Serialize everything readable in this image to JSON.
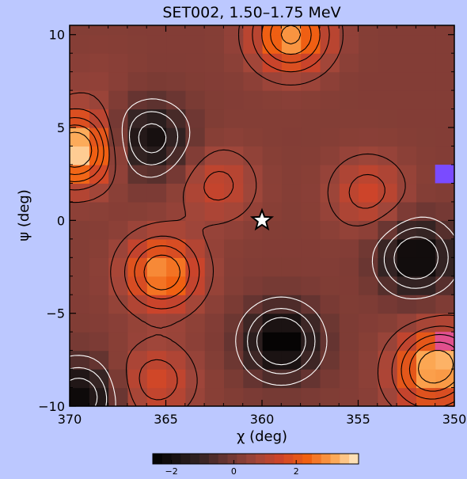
{
  "chart_data": {
    "type": "heatmap",
    "title": "SET002, 1.50–1.75 MeV",
    "xlabel": "χ (deg)",
    "ylabel": "ψ (deg)",
    "xlim": [
      370,
      350
    ],
    "ylim": [
      -10,
      10.5
    ],
    "x_ticks": [
      370,
      365,
      360,
      355,
      350
    ],
    "y_ticks": [
      -10,
      -5,
      0,
      5,
      10
    ],
    "colorbar": {
      "range": [
        -2.6,
        4.0
      ],
      "ticks": [
        -2,
        0,
        2
      ]
    },
    "grid_cell_deg": 1.0,
    "star_marker": {
      "x": 360,
      "y": 0
    },
    "hotspots": [
      {
        "x": 358.5,
        "y": 10.0,
        "value": 3.2
      },
      {
        "x": 369.7,
        "y": 3.8,
        "value": 3.8
      },
      {
        "x": 365.2,
        "y": -2.8,
        "value": 3.0
      },
      {
        "x": 362.3,
        "y": 1.9,
        "value": 1.4
      },
      {
        "x": 365.8,
        "y": 4.4,
        "value": -2.0
      },
      {
        "x": 354.5,
        "y": 1.5,
        "value": 1.5
      },
      {
        "x": 351.5,
        "y": -8.3,
        "value": 2.0
      },
      {
        "x": 365.5,
        "y": -8.6,
        "value": 1.6
      },
      {
        "x": 359.0,
        "y": -6.5,
        "value": -2.6
      },
      {
        "x": 352.0,
        "y": -2.0,
        "value": -2.4
      },
      {
        "x": 350.5,
        "y": -7.5,
        "value": 2.2
      },
      {
        "x": 369.5,
        "y": -9.5,
        "value": -2.2
      },
      {
        "x": 368.5,
        "y": 7.5,
        "value": 0.4
      }
    ],
    "background_value": 0.2,
    "special_cells": [
      {
        "x": 350.5,
        "y": 2.5,
        "color": "#7a4bff"
      },
      {
        "x": 350.5,
        "y": -6.5,
        "color": "#e0508e"
      }
    ]
  }
}
